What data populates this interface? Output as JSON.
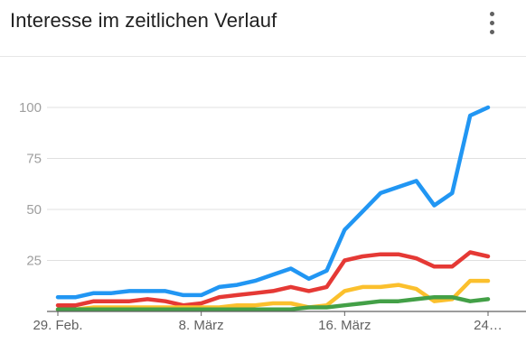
{
  "header": {
    "title": "Interesse im zeitlichen Verlauf",
    "menu_icon": "more-vert-icon"
  },
  "chart_data": {
    "type": "line",
    "title": "Interesse im zeitlichen Verlauf",
    "xlabel": "",
    "ylabel": "",
    "ylim": [
      0,
      100
    ],
    "yticks": [
      25,
      50,
      75,
      100
    ],
    "x_tick_labels": [
      {
        "index": 0,
        "label": "29. Feb."
      },
      {
        "index": 8,
        "label": "8. März"
      },
      {
        "index": 16,
        "label": "16. März"
      },
      {
        "index": 24,
        "label": "24…"
      }
    ],
    "grid": true,
    "x": [
      "29. Feb.",
      "1. März",
      "2. März",
      "3. März",
      "4. März",
      "5. März",
      "6. März",
      "7. März",
      "8. März",
      "9. März",
      "10. März",
      "11. März",
      "12. März",
      "13. März",
      "14. März",
      "15. März",
      "16. März",
      "17. März",
      "18. März",
      "19. März",
      "20. März",
      "21. März",
      "22. März",
      "23. März",
      "24. März"
    ],
    "series": [
      {
        "color": "#2196f3",
        "values": [
          7,
          7,
          9,
          9,
          10,
          10,
          10,
          8,
          8,
          12,
          13,
          15,
          18,
          21,
          16,
          20,
          40,
          49,
          58,
          61,
          64,
          52,
          58,
          96,
          100
        ]
      },
      {
        "color": "#e53935",
        "values": [
          3,
          3,
          5,
          5,
          5,
          6,
          5,
          3,
          4,
          7,
          8,
          9,
          10,
          12,
          10,
          12,
          25,
          27,
          28,
          28,
          26,
          22,
          22,
          29,
          27
        ]
      },
      {
        "color": "#fbc02d",
        "values": [
          1,
          1,
          2,
          2,
          2,
          2,
          2,
          2,
          2,
          2,
          3,
          3,
          4,
          4,
          2,
          3,
          10,
          12,
          12,
          13,
          11,
          5,
          6,
          15,
          15
        ]
      },
      {
        "color": "#43a047",
        "values": [
          1,
          1,
          1,
          1,
          1,
          1,
          1,
          1,
          1,
          1,
          1,
          1,
          1,
          1,
          2,
          2,
          3,
          4,
          5,
          5,
          6,
          7,
          7,
          5,
          6
        ]
      }
    ]
  },
  "colors": {
    "grid": "#e0e0e0",
    "axis": "#616161"
  }
}
